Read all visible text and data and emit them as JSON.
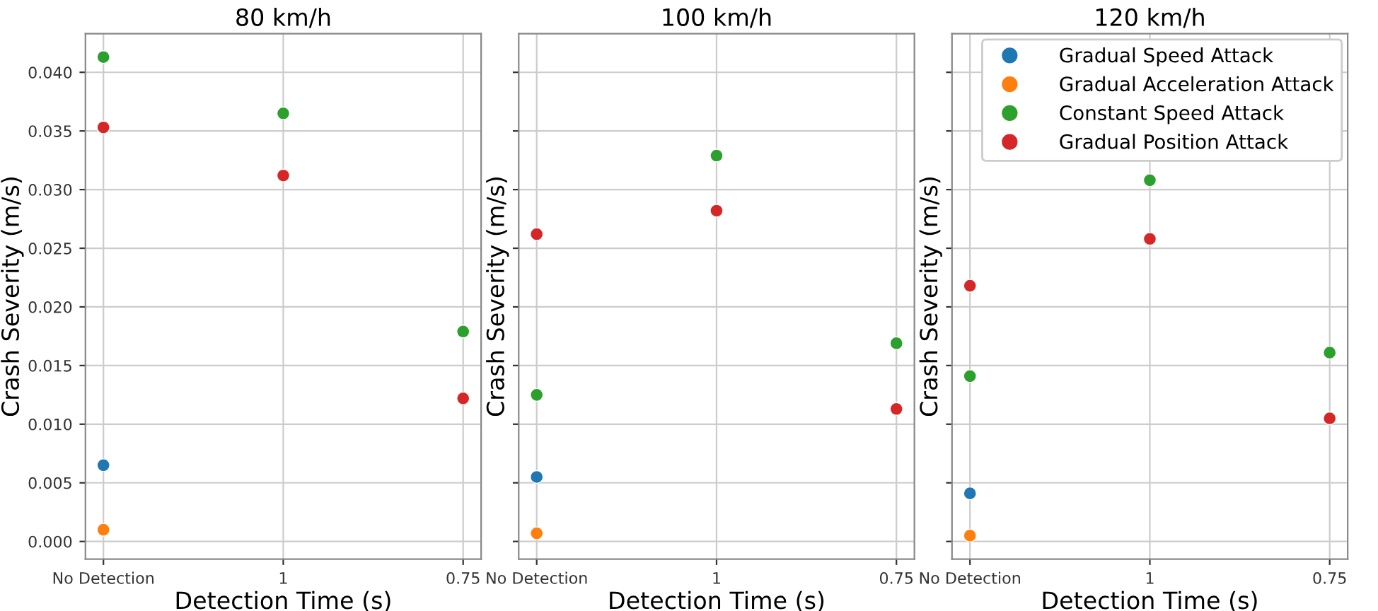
{
  "chart_data": [
    {
      "type": "scatter",
      "title": "80 km/h",
      "xlabel": "Detection Time (s)",
      "ylabel": "Crash Severity (m/s)",
      "categories": [
        "No Detection",
        "1",
        "0.75"
      ],
      "ylim": [
        -0.0015,
        0.0433
      ],
      "yticks": [
        {
          "value": 0,
          "label": "0.000"
        },
        {
          "value": 0.005,
          "label": "0.005"
        },
        {
          "value": 0.01,
          "label": "0.010"
        },
        {
          "value": 0.015,
          "label": "0.015"
        },
        {
          "value": 0.02,
          "label": "0.020"
        },
        {
          "value": 0.025,
          "label": "0.025"
        },
        {
          "value": 0.03,
          "label": "0.030"
        },
        {
          "value": 0.035,
          "label": "0.035"
        },
        {
          "value": 0.04,
          "label": "0.040"
        }
      ],
      "grid": true,
      "marker": "circle",
      "series": [
        {
          "color": "#1f77b4",
          "values": [
            0.0065,
            null,
            null
          ]
        },
        {
          "color": "#ff7f0e",
          "values": [
            0.001,
            null,
            null
          ]
        },
        {
          "color": "#2ca02c",
          "values": [
            0.0413,
            0.0365,
            0.0179
          ]
        },
        {
          "color": "#d62728",
          "values": [
            0.0353,
            0.0312,
            0.0122
          ]
        }
      ]
    },
    {
      "type": "scatter",
      "title": "100 km/h",
      "xlabel": "Detection Time (s)",
      "ylabel": "Crash Severity (m/s)",
      "categories": [
        "No Detection",
        "1",
        "0.75"
      ],
      "ylim": [
        -0.0015,
        0.0433
      ],
      "tick_labels": "x",
      "grid": true,
      "marker": "circle",
      "series": [
        {
          "color": "#1f77b4",
          "values": [
            0.0055,
            null,
            null
          ]
        },
        {
          "color": "#ff7f0e",
          "values": [
            0.0007,
            null,
            null
          ]
        },
        {
          "color": "#2ca02c",
          "values": [
            0.0125,
            0.0329,
            0.0169
          ]
        },
        {
          "color": "#d62728",
          "values": [
            0.0262,
            0.0282,
            0.0113
          ]
        }
      ]
    },
    {
      "type": "scatter",
      "title": "120 km/h",
      "xlabel": "Detection Time (s)",
      "ylabel": "Crash Severity (m/s)",
      "categories": [
        "No Detection",
        "1",
        "0.75"
      ],
      "ylim": [
        -0.0015,
        0.0433
      ],
      "tick_labels": "x",
      "grid": true,
      "marker": "circle",
      "legend": "top right",
      "series": [
        {
          "name": "Gradual Speed Attack",
          "color": "#1f77b4",
          "values": [
            0.0041,
            null,
            null
          ]
        },
        {
          "name": "Gradual Acceleration Attack",
          "color": "#ff7f0e",
          "values": [
            0.0005,
            null,
            null
          ]
        },
        {
          "name": "Constant Speed Attack",
          "color": "#2ca02c",
          "values": [
            0.0141,
            0.0308,
            0.0161
          ]
        },
        {
          "name": "Gradual Position Attack",
          "color": "#d62728",
          "values": [
            0.0218,
            0.0258,
            0.0105
          ]
        }
      ]
    }
  ]
}
